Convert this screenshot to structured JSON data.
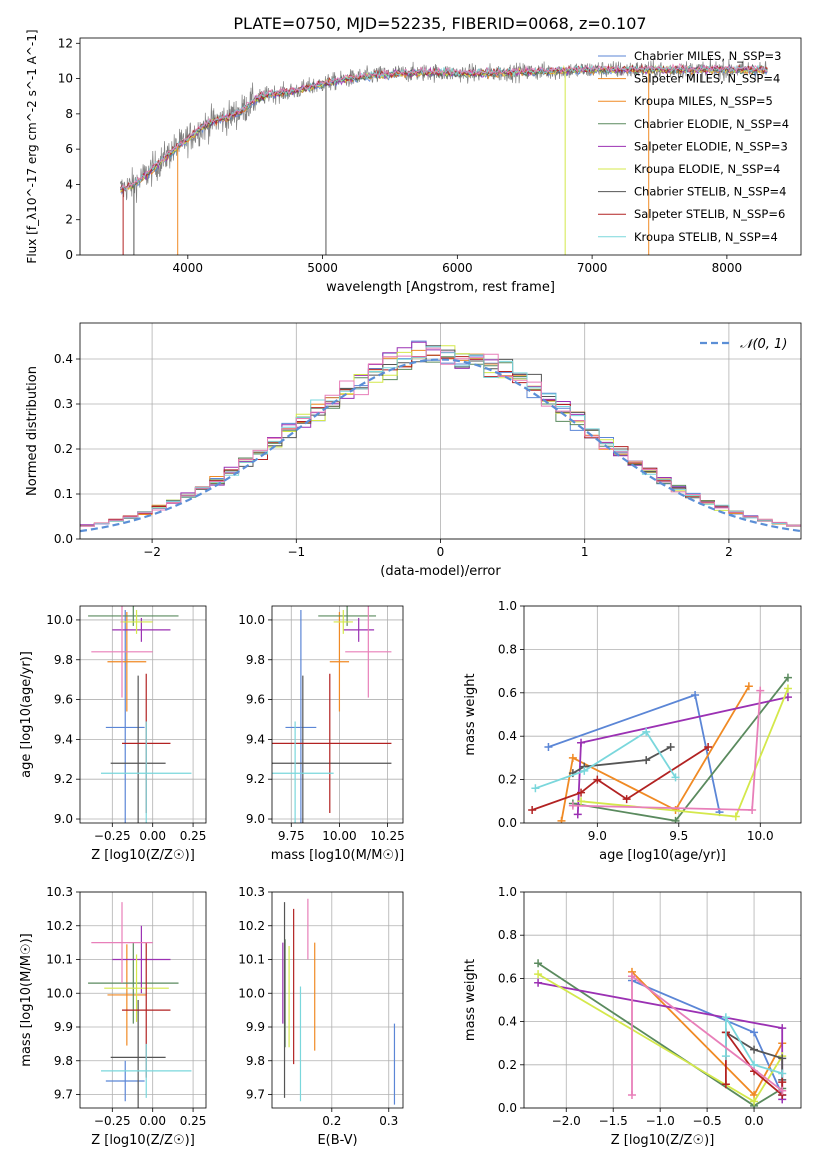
{
  "figure_title": "PLATE=0750, MJD=52235, FIBERID=0068, z=0.107",
  "colors": {
    "c1": "#5b86d6",
    "c2": "#f08a24",
    "c3": "#5a8a5e",
    "c4": "#9b31b3",
    "c5": "#d4e84b",
    "c6": "#555555",
    "c7": "#b22222",
    "c8": "#7ad7dc",
    "c9": "#e87fb9",
    "data": "#808080",
    "grid": "#b0b0b0",
    "normal": "#5b8fd6"
  },
  "chart_data": [
    {
      "id": "spectrum",
      "type": "line",
      "xlabel": "wavelength [Angstrom, rest frame]",
      "ylabel": "Flux [f_λ10^-17 erg cm^-2 s^-1 A^-1]",
      "xlim": [
        3200,
        8550
      ],
      "ylim": [
        0,
        12.3
      ],
      "xticks": [
        4000,
        5000,
        6000,
        7000,
        8000
      ],
      "yticks": [
        0,
        2,
        4,
        6,
        8,
        10,
        12
      ],
      "grid": false,
      "legend_position": "right",
      "legend": [
        {
          "label": "Chabrier MILES, N_SSP=3",
          "color_key": "c1"
        },
        {
          "label": "Salpeter MILES, N_SSP=4",
          "color_key": "c2"
        },
        {
          "label": "Kroupa MILES, N_SSP=5",
          "color_key": "c2"
        },
        {
          "label": "Chabrier ELODIE, N_SSP=4",
          "color_key": "c3"
        },
        {
          "label": "Salpeter ELODIE, N_SSP=3",
          "color_key": "c4"
        },
        {
          "label": "Kroupa ELODIE, N_SSP=4",
          "color_key": "c5"
        },
        {
          "label": "Chabrier STELIB, N_SSP=4",
          "color_key": "c6"
        },
        {
          "label": "Salpeter STELIB, N_SSP=6",
          "color_key": "c7"
        },
        {
          "label": "Kroupa STELIB, N_SSP=4",
          "color_key": "c8"
        }
      ],
      "continuum": [
        [
          3500,
          3.7
        ],
        [
          3600,
          4.0
        ],
        [
          3700,
          4.6
        ],
        [
          3800,
          5.3
        ],
        [
          3900,
          6.0
        ],
        [
          4000,
          6.6
        ],
        [
          4100,
          7.2
        ],
        [
          4200,
          7.6
        ],
        [
          4300,
          7.8
        ],
        [
          4400,
          8.2
        ],
        [
          4500,
          8.8
        ],
        [
          4600,
          9.1
        ],
        [
          4700,
          9.2
        ],
        [
          4800,
          9.3
        ],
        [
          4900,
          9.5
        ],
        [
          5000,
          9.7
        ],
        [
          5200,
          10.0
        ],
        [
          5400,
          10.2
        ],
        [
          5600,
          10.3
        ],
        [
          5800,
          10.35
        ],
        [
          6000,
          10.3
        ],
        [
          6200,
          10.3
        ],
        [
          6400,
          10.35
        ],
        [
          6600,
          10.4
        ],
        [
          6800,
          10.45
        ],
        [
          7000,
          10.5
        ],
        [
          7200,
          10.5
        ],
        [
          7400,
          10.5
        ],
        [
          7600,
          10.5
        ],
        [
          7800,
          10.5
        ],
        [
          8000,
          10.5
        ],
        [
          8200,
          10.5
        ],
        [
          8300,
          10.5
        ]
      ],
      "spikes": [
        {
          "x": 3520,
          "color_key": "c7"
        },
        {
          "x": 3600,
          "color_key": "c6"
        },
        {
          "x": 3925,
          "color_key": "c2"
        },
        {
          "x": 5025,
          "color_key": "c6"
        },
        {
          "x": 6800,
          "color_key": "c5"
        },
        {
          "x": 7420,
          "color_key": "c2"
        }
      ]
    },
    {
      "id": "residuals",
      "type": "line",
      "xlabel": "(data-model)/error",
      "ylabel": "Normed distribution",
      "xlim": [
        -2.5,
        2.5
      ],
      "ylim": [
        0,
        0.48
      ],
      "xticks": [
        -2,
        -1,
        0,
        1,
        2
      ],
      "yticks": [
        0.0,
        0.1,
        0.2,
        0.3,
        0.4
      ],
      "grid": true,
      "legend_position": "top-right",
      "legend_label": "𝒩(0, 1)",
      "bin_width": 0.1
    },
    {
      "id": "age-vs-Z",
      "type": "scatter",
      "xlabel": "Z [log10(Z/Z☉)]",
      "ylabel": "age [log10(age/yr)]",
      "xlim": [
        -0.45,
        0.33
      ],
      "ylim": [
        8.98,
        10.07
      ],
      "xticks": [
        -0.25,
        0.0,
        0.25
      ],
      "yticks": [
        9.0,
        9.2,
        9.4,
        9.6,
        9.8,
        10.0
      ],
      "grid": true,
      "points": [
        {
          "x": -0.17,
          "y": 9.46,
          "xerr": 0.12,
          "yerr": 0.59,
          "color_key": "c1"
        },
        {
          "x": -0.16,
          "y": 9.79,
          "xerr": 0.12,
          "yerr": 0.25,
          "color_key": "c2"
        },
        {
          "x": -0.12,
          "y": 10.02,
          "xerr": 0.28,
          "yerr": 0.05,
          "color_key": "c3"
        },
        {
          "x": -0.07,
          "y": 9.95,
          "xerr": 0.18,
          "yerr": 0.06,
          "color_key": "c4"
        },
        {
          "x": -0.1,
          "y": 9.99,
          "xerr": 0.1,
          "yerr": 0.06,
          "color_key": "c5"
        },
        {
          "x": -0.09,
          "y": 9.28,
          "xerr": 0.17,
          "yerr": 0.44,
          "color_key": "c6"
        },
        {
          "x": -0.04,
          "y": 9.38,
          "xerr": 0.15,
          "yerr": 0.35,
          "color_key": "c7"
        },
        {
          "x": -0.04,
          "y": 9.23,
          "xerr": 0.28,
          "yerr": 0.26,
          "color_key": "c8"
        },
        {
          "x": -0.19,
          "y": 9.84,
          "xerr": 0.19,
          "yerr": 0.23,
          "color_key": "c9"
        }
      ]
    },
    {
      "id": "age-vs-mass",
      "type": "scatter",
      "xlabel": "mass [log10(M/M☉)]",
      "ylabel": "",
      "xlim": [
        9.65,
        10.33
      ],
      "ylim": [
        8.98,
        10.07
      ],
      "xticks": [
        9.75,
        10.0,
        10.25
      ],
      "yticks": [
        9.0,
        9.2,
        9.4,
        9.6,
        9.8,
        10.0
      ],
      "grid": true,
      "points": [
        {
          "x": 9.8,
          "y": 9.46,
          "xerr": 0.08,
          "yerr": 0.59,
          "color_key": "c1"
        },
        {
          "x": 10.0,
          "y": 9.79,
          "xerr": 0.05,
          "yerr": 0.25,
          "color_key": "c2"
        },
        {
          "x": 10.04,
          "y": 10.02,
          "xerr": 0.15,
          "yerr": 0.05,
          "color_key": "c3"
        },
        {
          "x": 10.1,
          "y": 9.95,
          "xerr": 0.08,
          "yerr": 0.06,
          "color_key": "c4"
        },
        {
          "x": 10.02,
          "y": 9.99,
          "xerr": 0.05,
          "yerr": 0.06,
          "color_key": "c5"
        },
        {
          "x": 9.81,
          "y": 9.28,
          "xerr": 0.46,
          "yerr": 0.44,
          "color_key": "c6"
        },
        {
          "x": 9.95,
          "y": 9.38,
          "xerr": 0.32,
          "yerr": 0.35,
          "color_key": "c7"
        },
        {
          "x": 9.77,
          "y": 9.23,
          "xerr": 0.2,
          "yerr": 0.26,
          "color_key": "c8"
        },
        {
          "x": 10.15,
          "y": 9.84,
          "xerr": 0.12,
          "yerr": 0.23,
          "color_key": "c9"
        }
      ]
    },
    {
      "id": "weight-vs-age",
      "type": "line",
      "xlabel": "age [log10(age/yr)]",
      "ylabel": "mass weight",
      "xlim": [
        8.55,
        10.25
      ],
      "ylim": [
        0,
        1.0
      ],
      "xticks": [
        9.0,
        9.5,
        10.0
      ],
      "yticks": [
        0.0,
        0.2,
        0.4,
        0.6,
        0.8,
        1.0
      ],
      "grid": true,
      "series": [
        {
          "color_key": "c1",
          "points": [
            [
              8.7,
              0.35
            ],
            [
              9.6,
              0.59
            ],
            [
              9.75,
              0.05
            ]
          ]
        },
        {
          "color_key": "c2",
          "points": [
            [
              8.78,
              0.01
            ],
            [
              8.85,
              0.3
            ],
            [
              9.48,
              0.06
            ],
            [
              9.93,
              0.63
            ]
          ]
        },
        {
          "color_key": "c3",
          "points": [
            [
              8.85,
              0.09
            ],
            [
              9.48,
              0.01
            ],
            [
              10.17,
              0.67
            ]
          ]
        },
        {
          "color_key": "c4",
          "points": [
            [
              8.88,
              0.04
            ],
            [
              8.9,
              0.37
            ],
            [
              10.17,
              0.58
            ]
          ]
        },
        {
          "color_key": "c5",
          "points": [
            [
              8.9,
              0.1
            ],
            [
              9.85,
              0.03
            ],
            [
              10.17,
              0.62
            ]
          ]
        },
        {
          "color_key": "c6",
          "points": [
            [
              8.85,
              0.23
            ],
            [
              8.92,
              0.26
            ],
            [
              9.3,
              0.29
            ],
            [
              9.45,
              0.35
            ]
          ]
        },
        {
          "color_key": "c7",
          "points": [
            [
              8.6,
              0.06
            ],
            [
              8.9,
              0.14
            ],
            [
              9.0,
              0.2
            ],
            [
              9.18,
              0.11
            ],
            [
              9.68,
              0.35
            ]
          ]
        },
        {
          "color_key": "c8",
          "points": [
            [
              8.62,
              0.16
            ],
            [
              8.92,
              0.24
            ],
            [
              9.3,
              0.42
            ],
            [
              9.48,
              0.21
            ]
          ]
        },
        {
          "color_key": "c9",
          "points": [
            [
              8.85,
              0.08
            ],
            [
              9.95,
              0.06
            ],
            [
              10.0,
              0.61
            ]
          ]
        }
      ]
    },
    {
      "id": "mass-vs-Z",
      "type": "scatter",
      "xlabel": "Z [log10(Z/Z☉)]",
      "ylabel": "mass [log10(M/M☉)]",
      "xlim": [
        -0.45,
        0.33
      ],
      "ylim": [
        9.66,
        10.3
      ],
      "xticks": [
        -0.25,
        0.0,
        0.25
      ],
      "yticks": [
        9.7,
        9.8,
        9.9,
        10.0,
        10.1,
        10.2,
        10.3
      ],
      "grid": true,
      "points": [
        {
          "x": -0.17,
          "y": 9.74,
          "xerr": 0.12,
          "yerr": 0.06,
          "color_key": "c1"
        },
        {
          "x": -0.16,
          "y": 9.995,
          "xerr": 0.12,
          "yerr": 0.15,
          "color_key": "c2"
        },
        {
          "x": -0.12,
          "y": 10.03,
          "xerr": 0.28,
          "yerr": 0.12,
          "color_key": "c3"
        },
        {
          "x": -0.07,
          "y": 10.1,
          "xerr": 0.18,
          "yerr": 0.1,
          "color_key": "c4"
        },
        {
          "x": -0.1,
          "y": 10.015,
          "xerr": 0.2,
          "yerr": 0.1,
          "color_key": "c5"
        },
        {
          "x": -0.09,
          "y": 9.81,
          "xerr": 0.17,
          "yerr": 0.17,
          "color_key": "c6"
        },
        {
          "x": -0.04,
          "y": 9.95,
          "xerr": 0.15,
          "yerr": 0.2,
          "color_key": "c7"
        },
        {
          "x": -0.04,
          "y": 9.77,
          "xerr": 0.28,
          "yerr": 0.08,
          "color_key": "c8"
        },
        {
          "x": -0.19,
          "y": 10.15,
          "xerr": 0.19,
          "yerr": 0.12,
          "color_key": "c9"
        }
      ]
    },
    {
      "id": "mass-vs-EBV",
      "type": "scatter",
      "xlabel": "E(B-V)",
      "ylabel": "",
      "xlim": [
        0.095,
        0.325
      ],
      "ylim": [
        9.66,
        10.3
      ],
      "xticks": [
        0.2,
        0.3
      ],
      "yticks": [
        9.7,
        9.8,
        9.9,
        10.0,
        10.1,
        10.2,
        10.3
      ],
      "grid": true,
      "points": [
        {
          "x": 0.31,
          "y": 9.79,
          "yerr": 0.12,
          "color_key": "c1"
        },
        {
          "x": 0.17,
          "y": 9.99,
          "yerr": 0.16,
          "color_key": "c2"
        },
        {
          "x": 0.118,
          "y": 10.0,
          "yerr": 0.16,
          "color_key": "c3"
        },
        {
          "x": 0.114,
          "y": 10.03,
          "yerr": 0.12,
          "color_key": "c4"
        },
        {
          "x": 0.125,
          "y": 9.99,
          "yerr": 0.15,
          "color_key": "c5"
        },
        {
          "x": 0.117,
          "y": 9.98,
          "yerr": 0.29,
          "color_key": "c6"
        },
        {
          "x": 0.133,
          "y": 10.02,
          "yerr": 0.23,
          "color_key": "c7"
        },
        {
          "x": 0.145,
          "y": 9.85,
          "yerr": 0.17,
          "color_key": "c8"
        },
        {
          "x": 0.158,
          "y": 10.19,
          "yerr": 0.09,
          "color_key": "c9"
        }
      ]
    },
    {
      "id": "weight-vs-Z",
      "type": "line",
      "xlabel": "Z [log10(Z/Z☉)]",
      "ylabel": "mass weight",
      "xlim": [
        -2.45,
        0.5
      ],
      "ylim": [
        0,
        1.0
      ],
      "xticks": [
        -2.0,
        -1.5,
        -1.0,
        -0.5,
        0.0
      ],
      "yticks": [
        0.0,
        0.2,
        0.4,
        0.6,
        0.8,
        1.0
      ],
      "grid": true,
      "series": [
        {
          "color_key": "c1",
          "points": [
            [
              -1.3,
              0.59
            ],
            [
              0.0,
              0.35
            ],
            [
              0.3,
              0.06
            ]
          ]
        },
        {
          "color_key": "c2",
          "points": [
            [
              -1.3,
              0.63
            ],
            [
              0.0,
              0.06
            ],
            [
              0.3,
              0.3
            ]
          ]
        },
        {
          "color_key": "c3",
          "points": [
            [
              -2.3,
              0.67
            ],
            [
              0.0,
              0.01
            ],
            [
              0.3,
              0.09
            ]
          ]
        },
        {
          "color_key": "c4",
          "points": [
            [
              -2.3,
              0.58
            ],
            [
              0.3,
              0.37
            ],
            [
              0.3,
              0.04
            ]
          ]
        },
        {
          "color_key": "c5",
          "points": [
            [
              -2.3,
              0.62
            ],
            [
              0.0,
              0.03
            ],
            [
              0.3,
              0.24
            ]
          ]
        },
        {
          "color_key": "c6",
          "points": [
            [
              -0.3,
              0.35
            ],
            [
              0.0,
              0.27
            ],
            [
              0.3,
              0.23
            ],
            [
              0.3,
              0.13
            ]
          ]
        },
        {
          "color_key": "c7",
          "points": [
            [
              -0.3,
              0.11
            ],
            [
              -0.3,
              0.35
            ],
            [
              0.0,
              0.17
            ],
            [
              0.3,
              0.06
            ],
            [
              0.3,
              0.12
            ]
          ]
        },
        {
          "color_key": "c8",
          "points": [
            [
              -0.3,
              0.24
            ],
            [
              -0.3,
              0.42
            ],
            [
              0.0,
              0.2
            ],
            [
              0.3,
              0.16
            ]
          ]
        },
        {
          "color_key": "c9",
          "points": [
            [
              -1.3,
              0.06
            ],
            [
              -1.3,
              0.61
            ],
            [
              0.3,
              0.08
            ]
          ]
        }
      ]
    }
  ]
}
